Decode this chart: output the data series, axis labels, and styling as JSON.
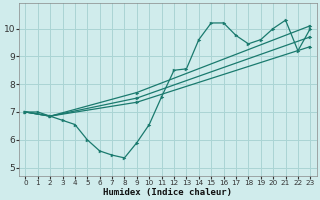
{
  "xlabel": "Humidex (Indice chaleur)",
  "xlim": [
    -0.5,
    23.5
  ],
  "ylim": [
    4.7,
    10.9
  ],
  "xticks": [
    0,
    1,
    2,
    3,
    4,
    5,
    6,
    7,
    8,
    9,
    10,
    11,
    12,
    13,
    14,
    15,
    16,
    17,
    18,
    19,
    20,
    21,
    22,
    23
  ],
  "yticks": [
    5,
    6,
    7,
    8,
    9,
    10
  ],
  "bg_color": "#d0ecec",
  "grid_color": "#aad4d4",
  "line_color": "#1a7a6e",
  "lines": [
    {
      "x": [
        0,
        1,
        2,
        3,
        4,
        5,
        6,
        7,
        8,
        9,
        10,
        11,
        12,
        13,
        14,
        15,
        16,
        17,
        18,
        19,
        20,
        21,
        22,
        23
      ],
      "y": [
        7.0,
        7.0,
        6.85,
        6.7,
        6.55,
        6.0,
        5.6,
        5.45,
        5.35,
        5.9,
        6.55,
        7.55,
        8.5,
        8.55,
        9.6,
        10.2,
        10.2,
        9.75,
        9.45,
        9.6,
        10.0,
        10.3,
        9.2,
        10.0
      ]
    },
    {
      "x": [
        0,
        2,
        9,
        23
      ],
      "y": [
        7.0,
        6.85,
        7.35,
        9.35
      ]
    },
    {
      "x": [
        0,
        2,
        9,
        23
      ],
      "y": [
        7.0,
        6.85,
        7.5,
        9.7
      ]
    },
    {
      "x": [
        0,
        2,
        9,
        23
      ],
      "y": [
        7.0,
        6.85,
        7.7,
        10.1
      ]
    }
  ]
}
